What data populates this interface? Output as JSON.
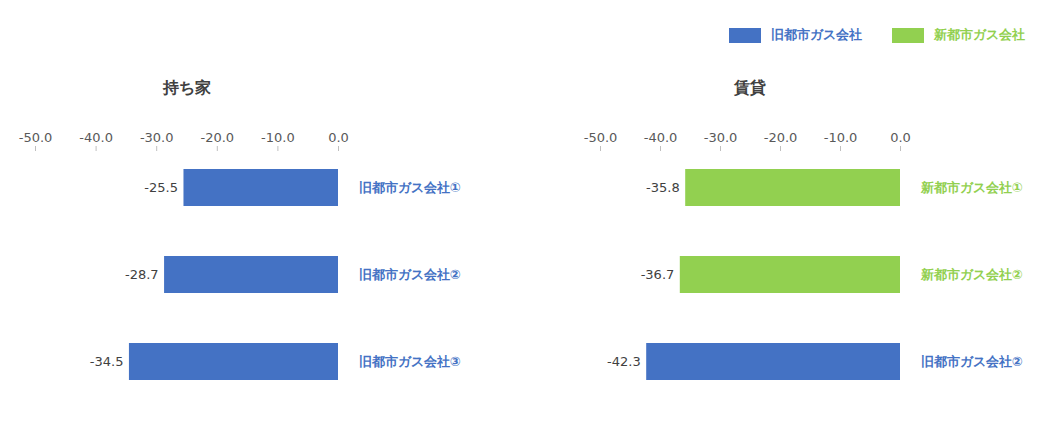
{
  "chart_data": [
    {
      "type": "bar",
      "title": "持ち家",
      "orientation": "horizontal",
      "categories": [
        "旧都市ガス会社①",
        "旧都市ガス会社②",
        "旧都市ガス会社③"
      ],
      "series": [
        {
          "name": "旧都市ガス会社",
          "color": "#4472c4",
          "values": [
            -25.5,
            -28.7,
            -34.5
          ]
        }
      ],
      "xlim": [
        -50,
        0
      ],
      "xticks": [
        {
          "value": -50,
          "label": "-50.0"
        },
        {
          "value": -40,
          "label": "-40.0"
        },
        {
          "value": -30,
          "label": "-30.0"
        },
        {
          "value": -20,
          "label": "-20.0"
        },
        {
          "value": -10,
          "label": "-10.0"
        },
        {
          "value": 0,
          "label": "0.0"
        }
      ],
      "data_labels": true,
      "grid": false,
      "legend": false
    },
    {
      "type": "bar",
      "title": "賃貸",
      "orientation": "horizontal",
      "categories": [
        "新都市ガス会社①",
        "新都市ガス会社②",
        "旧都市ガス会社②"
      ],
      "series": [
        {
          "name": "旧都市ガス会社",
          "color": "#4472c4",
          "values": [
            null,
            null,
            -42.3
          ]
        },
        {
          "name": "新都市ガス会社",
          "color": "#92d050",
          "values": [
            -35.8,
            -36.7,
            null
          ]
        }
      ],
      "xlim": [
        -50,
        0
      ],
      "xticks": [
        {
          "value": -50,
          "label": "-50.0"
        },
        {
          "value": -40,
          "label": "-40.0"
        },
        {
          "value": -30,
          "label": "-30.0"
        },
        {
          "value": -20,
          "label": "-20.0"
        },
        {
          "value": -10,
          "label": "-10.0"
        },
        {
          "value": 0,
          "label": "0.0"
        }
      ],
      "data_labels": true,
      "grid": false,
      "legend": "top-right"
    }
  ]
}
